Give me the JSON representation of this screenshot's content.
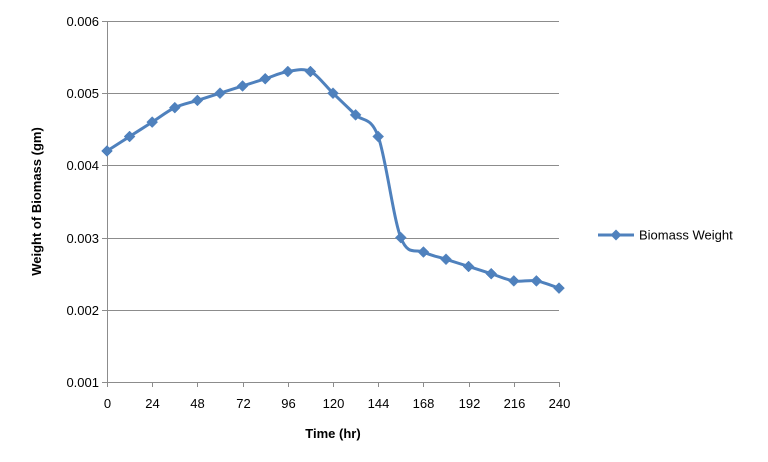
{
  "chart_data": {
    "type": "line",
    "xlabel": "Time (hr)",
    "ylabel": "Weight of Biomass  (gm)",
    "xlim": [
      0,
      240
    ],
    "ylim": [
      0.001,
      0.006
    ],
    "x_ticks": [
      0,
      24,
      48,
      72,
      96,
      120,
      144,
      168,
      192,
      216,
      240
    ],
    "x_tick_labels": [
      "0",
      "24",
      "48",
      "72",
      "96",
      "120",
      "144",
      "168",
      "192",
      "216",
      "240"
    ],
    "y_ticks": [
      0.001,
      0.002,
      0.003,
      0.004,
      0.005,
      0.006
    ],
    "y_tick_labels": [
      "0.001",
      "0.002",
      "0.003",
      "0.004",
      "0.005",
      "0.006"
    ],
    "grid": "horizontal",
    "legend_position": "right",
    "series": [
      {
        "name": "Biomass Weight",
        "color": "#4F81BD",
        "marker": "diamond",
        "x": [
          0,
          12,
          24,
          36,
          48,
          60,
          72,
          84,
          96,
          108,
          120,
          132,
          144,
          156,
          168,
          180,
          192,
          204,
          216,
          228,
          240
        ],
        "y": [
          0.0042,
          0.0044,
          0.0046,
          0.0048,
          0.0049,
          0.005,
          0.0051,
          0.0052,
          0.0053,
          0.0053,
          0.005,
          0.0047,
          0.0044,
          0.003,
          0.0028,
          0.0027,
          0.0026,
          0.0025,
          0.0024,
          0.0024,
          0.0023
        ]
      }
    ]
  }
}
